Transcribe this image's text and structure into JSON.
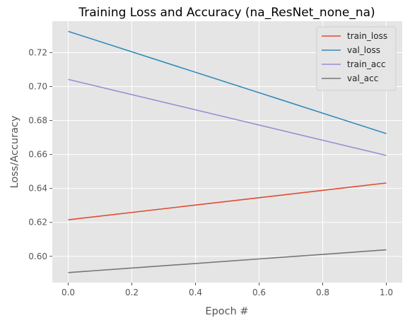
{
  "chart_data": {
    "type": "line",
    "title": "Training Loss and Accuracy (na_ResNet_none_na)",
    "xlabel": "Epoch #",
    "ylabel": "Loss/Accuracy",
    "x": [
      0,
      1
    ],
    "xlim": [
      -0.05,
      1.05
    ],
    "ylim": [
      0.5845,
      0.7385
    ],
    "xticks": [
      0.0,
      0.2,
      0.4,
      0.6,
      0.8,
      1.0
    ],
    "xtick_labels": [
      "0.0",
      "0.2",
      "0.4",
      "0.6",
      "0.8",
      "1.0"
    ],
    "yticks": [
      0.6,
      0.62,
      0.64,
      0.66,
      0.68,
      0.7,
      0.72
    ],
    "ytick_labels": [
      "0.60",
      "0.62",
      "0.64",
      "0.66",
      "0.68",
      "0.70",
      "0.72"
    ],
    "grid": true,
    "legend_position": "top-right",
    "series": [
      {
        "name": "train_loss",
        "values": [
          0.6215,
          0.6432
        ],
        "color": "#E24A33"
      },
      {
        "name": "val_loss",
        "values": [
          0.7325,
          0.6723
        ],
        "color": "#348ABD"
      },
      {
        "name": "train_acc",
        "values": [
          0.7042,
          0.6594
        ],
        "color": "#988ED5"
      },
      {
        "name": "val_acc",
        "values": [
          0.5904,
          0.6038
        ],
        "color": "#777777"
      }
    ]
  }
}
